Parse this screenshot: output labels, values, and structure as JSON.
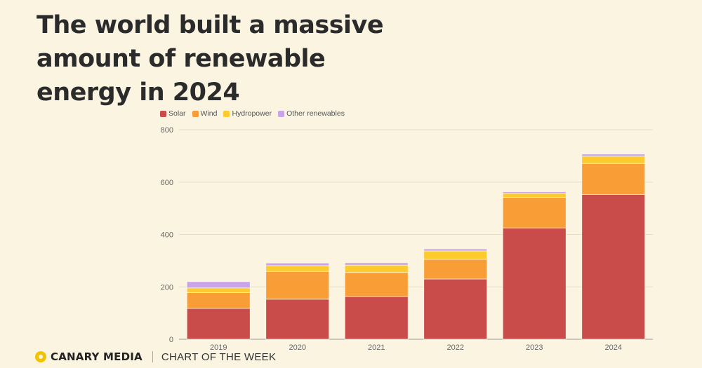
{
  "headline": "The world built a massive amount of renewable energy in 2024",
  "chart_data": {
    "type": "bar",
    "stacked": true,
    "categories": [
      "2019",
      "2020",
      "2021",
      "2022",
      "2023",
      "2024"
    ],
    "series": [
      {
        "name": "Solar",
        "color": "#c94b4a",
        "values": [
          118,
          153,
          163,
          230,
          425,
          553
        ]
      },
      {
        "name": "Wind",
        "color": "#f99d36",
        "values": [
          60,
          106,
          92,
          75,
          117,
          118
        ]
      },
      {
        "name": "Hydropower",
        "color": "#fecb2c",
        "values": [
          18,
          22,
          28,
          32,
          15,
          28
        ]
      },
      {
        "name": "Other renewables",
        "color": "#c9a4eb",
        "values": [
          24,
          10,
          9,
          8,
          6,
          8
        ]
      }
    ],
    "ylim": [
      0,
      800
    ],
    "yticks": [
      0,
      200,
      400,
      600,
      800
    ],
    "legend_position": "top-left",
    "grid": true
  },
  "footer": {
    "brand": "CANARY MEDIA",
    "tagline": "CHART OF THE WEEK"
  }
}
